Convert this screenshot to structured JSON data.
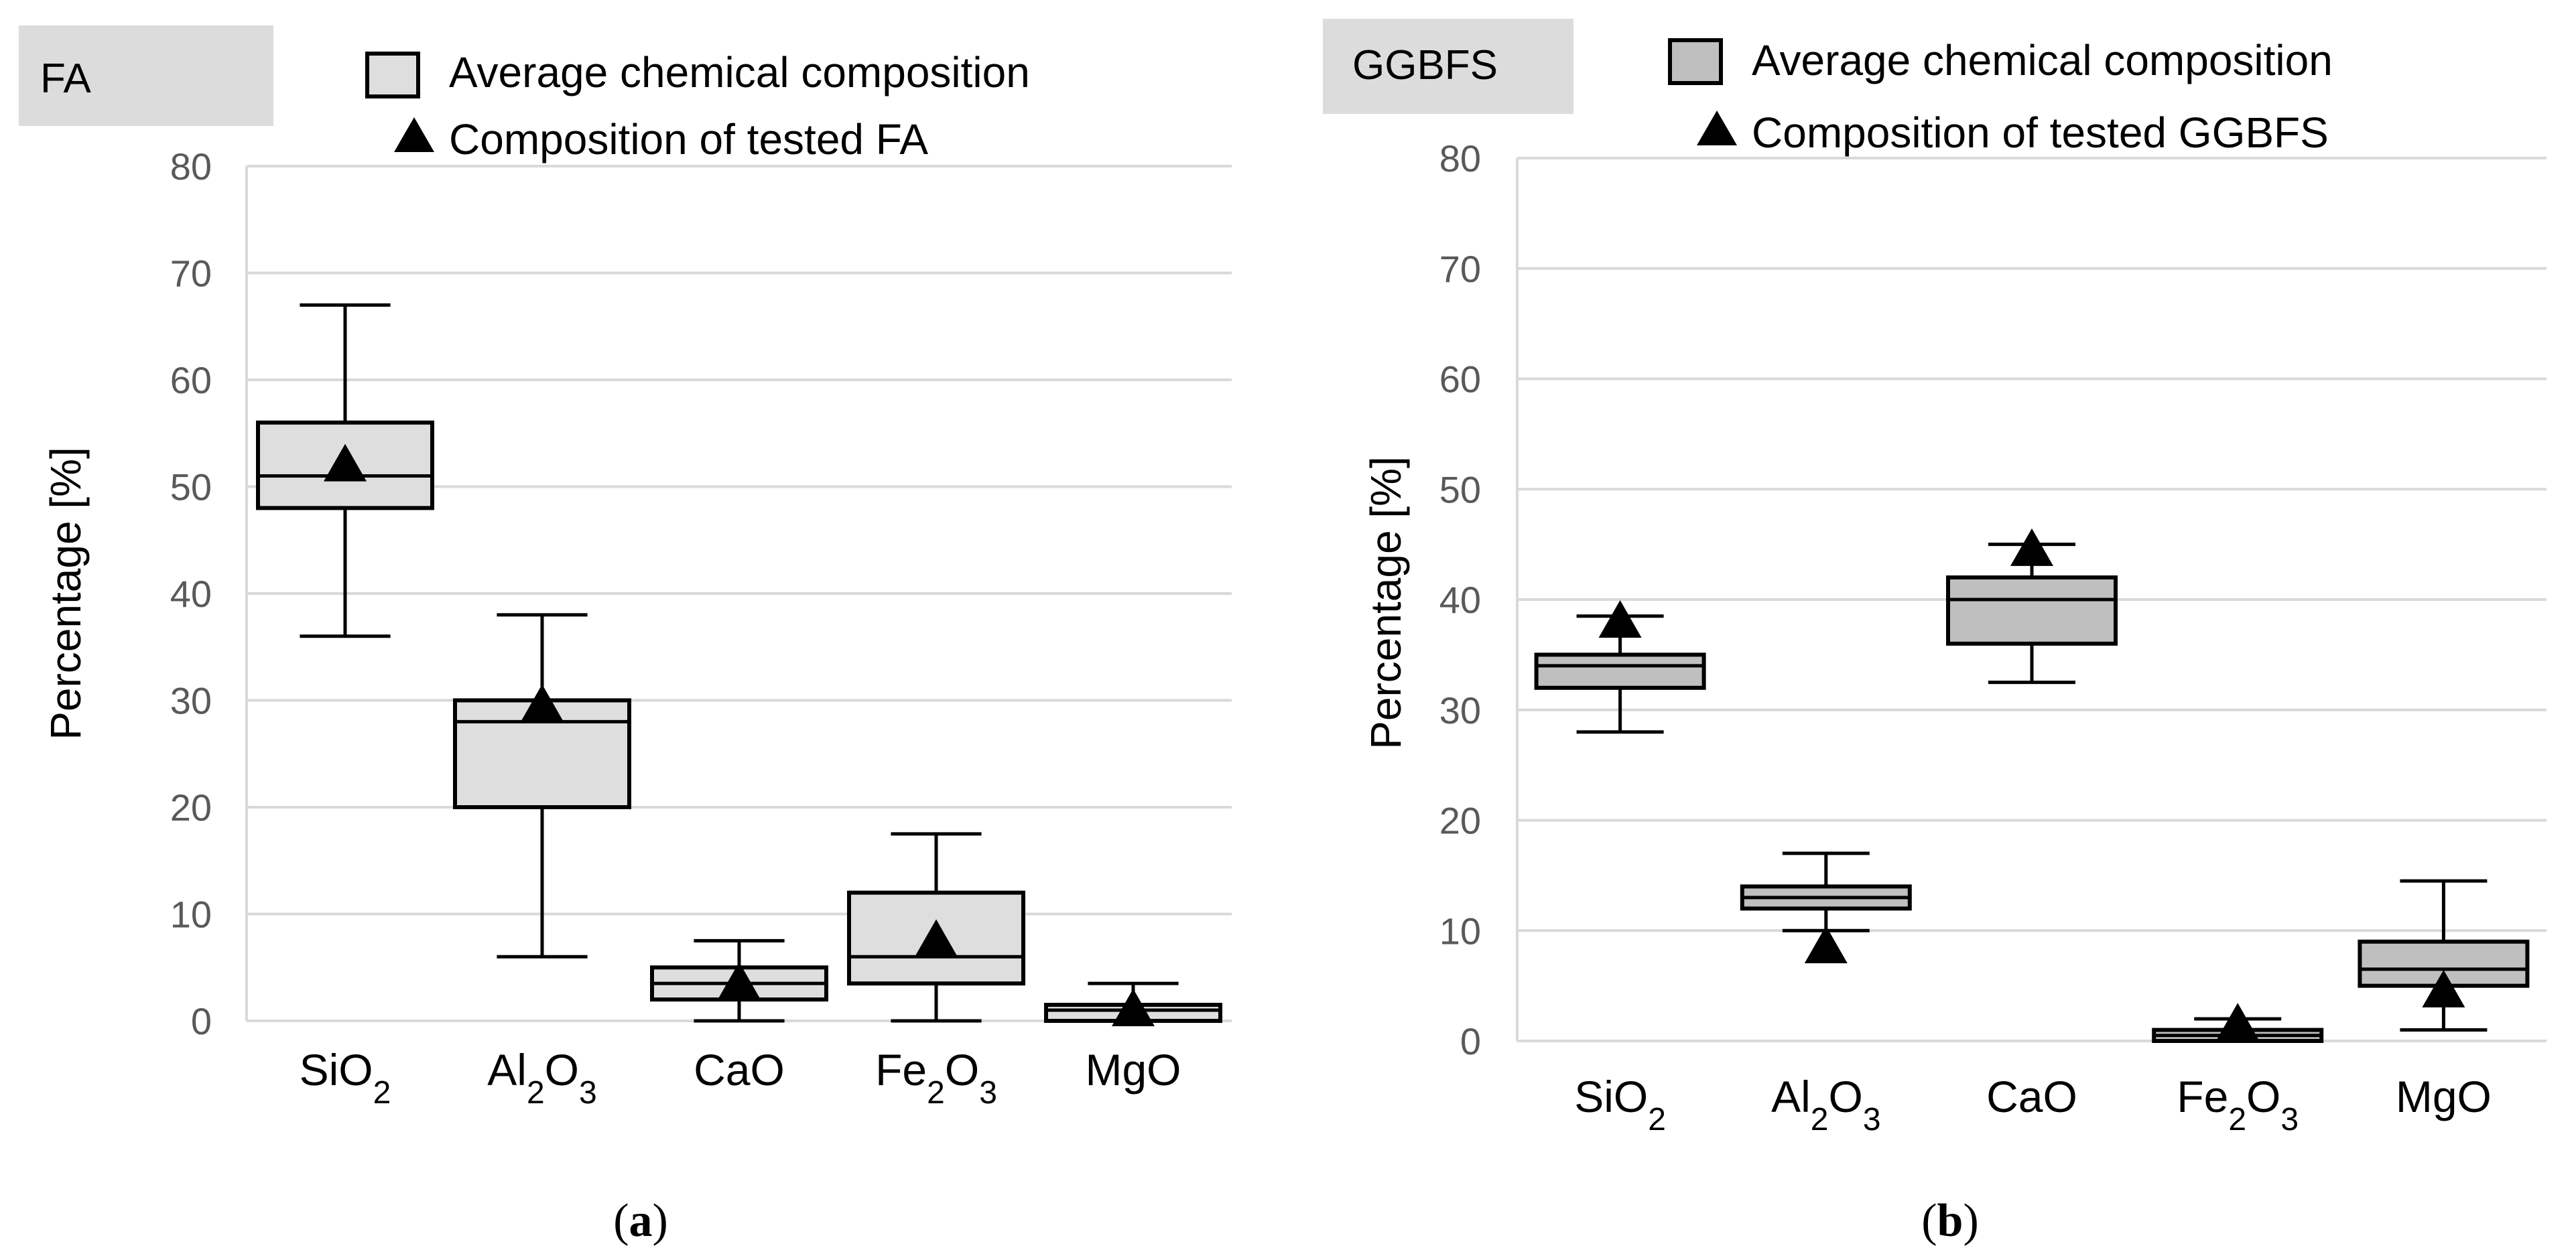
{
  "chart_data": [
    {
      "type": "box",
      "panel_label": "FA",
      "caption_letter": "a",
      "ylabel": "Percentage [%]",
      "ylim": [
        0,
        80
      ],
      "yticks": [
        0,
        10,
        20,
        30,
        40,
        50,
        60,
        70,
        80
      ],
      "categories": [
        {
          "base": "SiO",
          "sub": "2",
          "tail": "",
          "tailsub": ""
        },
        {
          "base": "Al",
          "sub": "2",
          "tail": "O",
          "tailsub": "3"
        },
        {
          "base": "CaO",
          "sub": "",
          "tail": "",
          "tailsub": ""
        },
        {
          "base": "Fe",
          "sub": "2",
          "tail": "O",
          "tailsub": "3"
        },
        {
          "base": "MgO",
          "sub": "",
          "tail": "",
          "tailsub": ""
        }
      ],
      "legend": [
        "Average chemical composition",
        "Composition of tested FA"
      ],
      "boxes": [
        {
          "min": 36,
          "q1": 48,
          "median": 51,
          "q3": 56,
          "max": 67,
          "tested": 52
        },
        {
          "min": 6,
          "q1": 20,
          "median": 28,
          "q3": 30,
          "max": 38,
          "tested": 29.5
        },
        {
          "min": 0,
          "q1": 2,
          "median": 3.5,
          "q3": 5,
          "max": 7.5,
          "tested": 3.5
        },
        {
          "min": 0,
          "q1": 3.5,
          "median": 6,
          "q3": 12,
          "max": 17.5,
          "tested": 7.5
        },
        {
          "min": 0,
          "q1": 0,
          "median": 1,
          "q3": 1.5,
          "max": 3.5,
          "tested": 1
        }
      ],
      "colors": {
        "box": "#dedede",
        "line": "#000000",
        "grid": "#d9d9d9",
        "tag_bg": "#dcdcdc"
      }
    },
    {
      "type": "box",
      "panel_label": "GGBFS",
      "caption_letter": "b",
      "ylabel": "Percentage [%]",
      "ylim": [
        0,
        80
      ],
      "yticks": [
        0,
        10,
        20,
        30,
        40,
        50,
        60,
        70,
        80
      ],
      "categories": [
        {
          "base": "SiO",
          "sub": "2",
          "tail": "",
          "tailsub": ""
        },
        {
          "base": "Al",
          "sub": "2",
          "tail": "O",
          "tailsub": "3"
        },
        {
          "base": "CaO",
          "sub": "",
          "tail": "",
          "tailsub": ""
        },
        {
          "base": "Fe",
          "sub": "2",
          "tail": "O",
          "tailsub": "3"
        },
        {
          "base": "MgO",
          "sub": "",
          "tail": "",
          "tailsub": ""
        }
      ],
      "legend": [
        "Average chemical composition",
        "Composition of tested GGBFS"
      ],
      "boxes": [
        {
          "min": 28,
          "q1": 32,
          "median": 34,
          "q3": 35,
          "max": 38.5,
          "tested": 38
        },
        {
          "min": 10,
          "q1": 12,
          "median": 13,
          "q3": 14,
          "max": 17,
          "tested": 8.5
        },
        {
          "min": 32.5,
          "q1": 36,
          "median": 40,
          "q3": 42,
          "max": 45,
          "tested": 44.5
        },
        {
          "min": 0,
          "q1": 0,
          "median": 0.5,
          "q3": 1,
          "max": 2,
          "tested": 1.5
        },
        {
          "min": 1,
          "q1": 5,
          "median": 6.5,
          "q3": 9,
          "max": 14.5,
          "tested": 4.5
        }
      ],
      "colors": {
        "box": "#bfbfbf",
        "line": "#000000",
        "grid": "#d9d9d9",
        "tag_bg": "#dcdcdc"
      }
    }
  ]
}
